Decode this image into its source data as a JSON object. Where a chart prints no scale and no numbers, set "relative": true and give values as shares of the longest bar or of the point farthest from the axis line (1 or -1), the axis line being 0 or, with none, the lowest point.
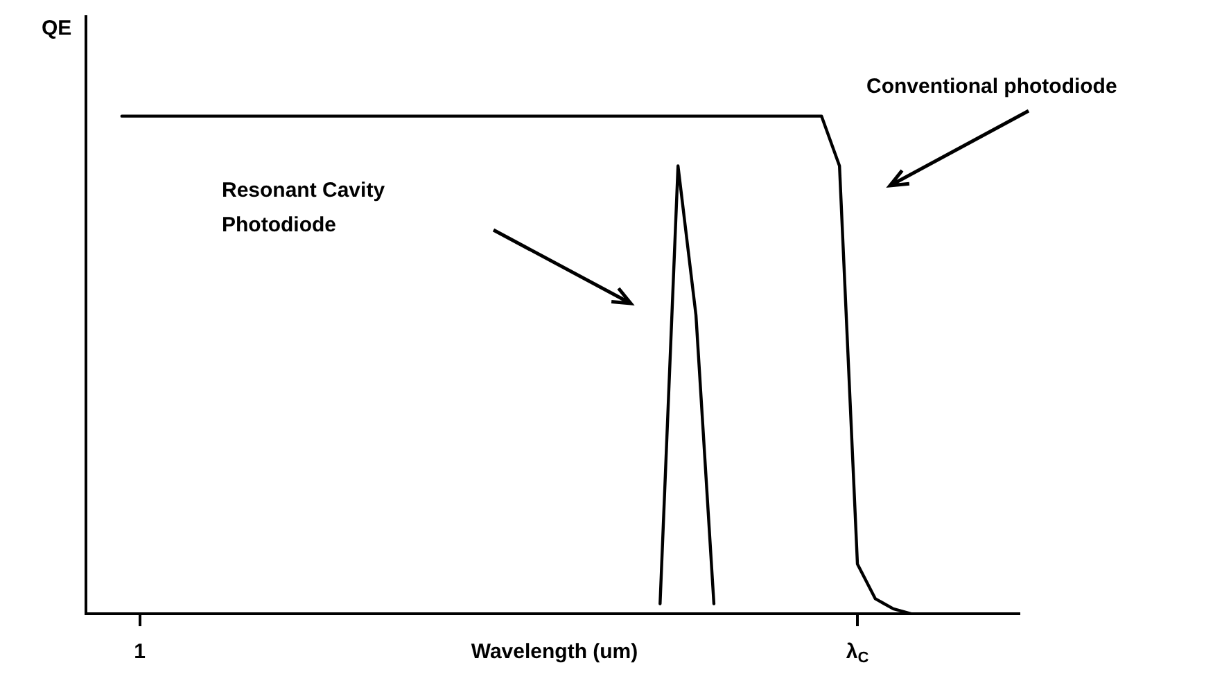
{
  "chart_data": {
    "type": "line",
    "relative": true,
    "ylabel": "QE",
    "xlabel": "Wavelength (um)",
    "categories": [
      null,
      null,
      null,
      "1",
      null,
      null,
      null,
      null,
      null,
      null,
      null,
      null,
      null,
      null,
      null,
      null,
      null,
      null,
      null,
      null,
      null,
      null,
      null,
      null,
      null,
      null,
      null,
      null,
      null,
      null,
      null,
      null,
      null,
      null,
      null,
      null,
      null,
      null,
      null,
      null,
      null,
      null,
      null,
      "λ$_{C}$",
      null,
      null,
      null,
      null,
      null,
      null,
      null,
      null,
      null
    ],
    "series": [
      {
        "color": "#000000",
        "values": [
          null,
          null,
          1,
          1,
          1,
          1,
          1,
          1,
          1,
          1,
          1,
          1,
          1,
          1,
          1,
          1,
          1,
          1,
          1,
          1,
          1,
          1,
          1,
          1,
          1,
          1,
          1,
          1,
          1,
          1,
          1,
          1,
          1,
          1,
          1,
          1,
          1,
          1,
          1,
          1,
          1,
          1,
          0.9,
          0.1,
          0.03,
          0.01,
          0,
          null,
          null,
          null,
          null,
          null,
          null
        ]
      },
      {
        "color": "#000000",
        "values": [
          null,
          null,
          null,
          null,
          null,
          null,
          null,
          null,
          null,
          null,
          null,
          null,
          null,
          null,
          null,
          null,
          null,
          null,
          null,
          null,
          null,
          null,
          null,
          null,
          null,
          null,
          null,
          null,
          null,
          null,
          null,
          null,
          0.02,
          0.9,
          0.6,
          0.02,
          null,
          null,
          null,
          null,
          null,
          null,
          null,
          null,
          null,
          null,
          null,
          null,
          null,
          null,
          null,
          null,
          null
        ]
      }
    ],
    "annotations": [
      "Conventional photodiode",
      "Resonant Cavity\nPhotodiode"
    ],
    "grid": false,
    "legend": false,
    "marker": "none",
    "line_style": "solid"
  }
}
